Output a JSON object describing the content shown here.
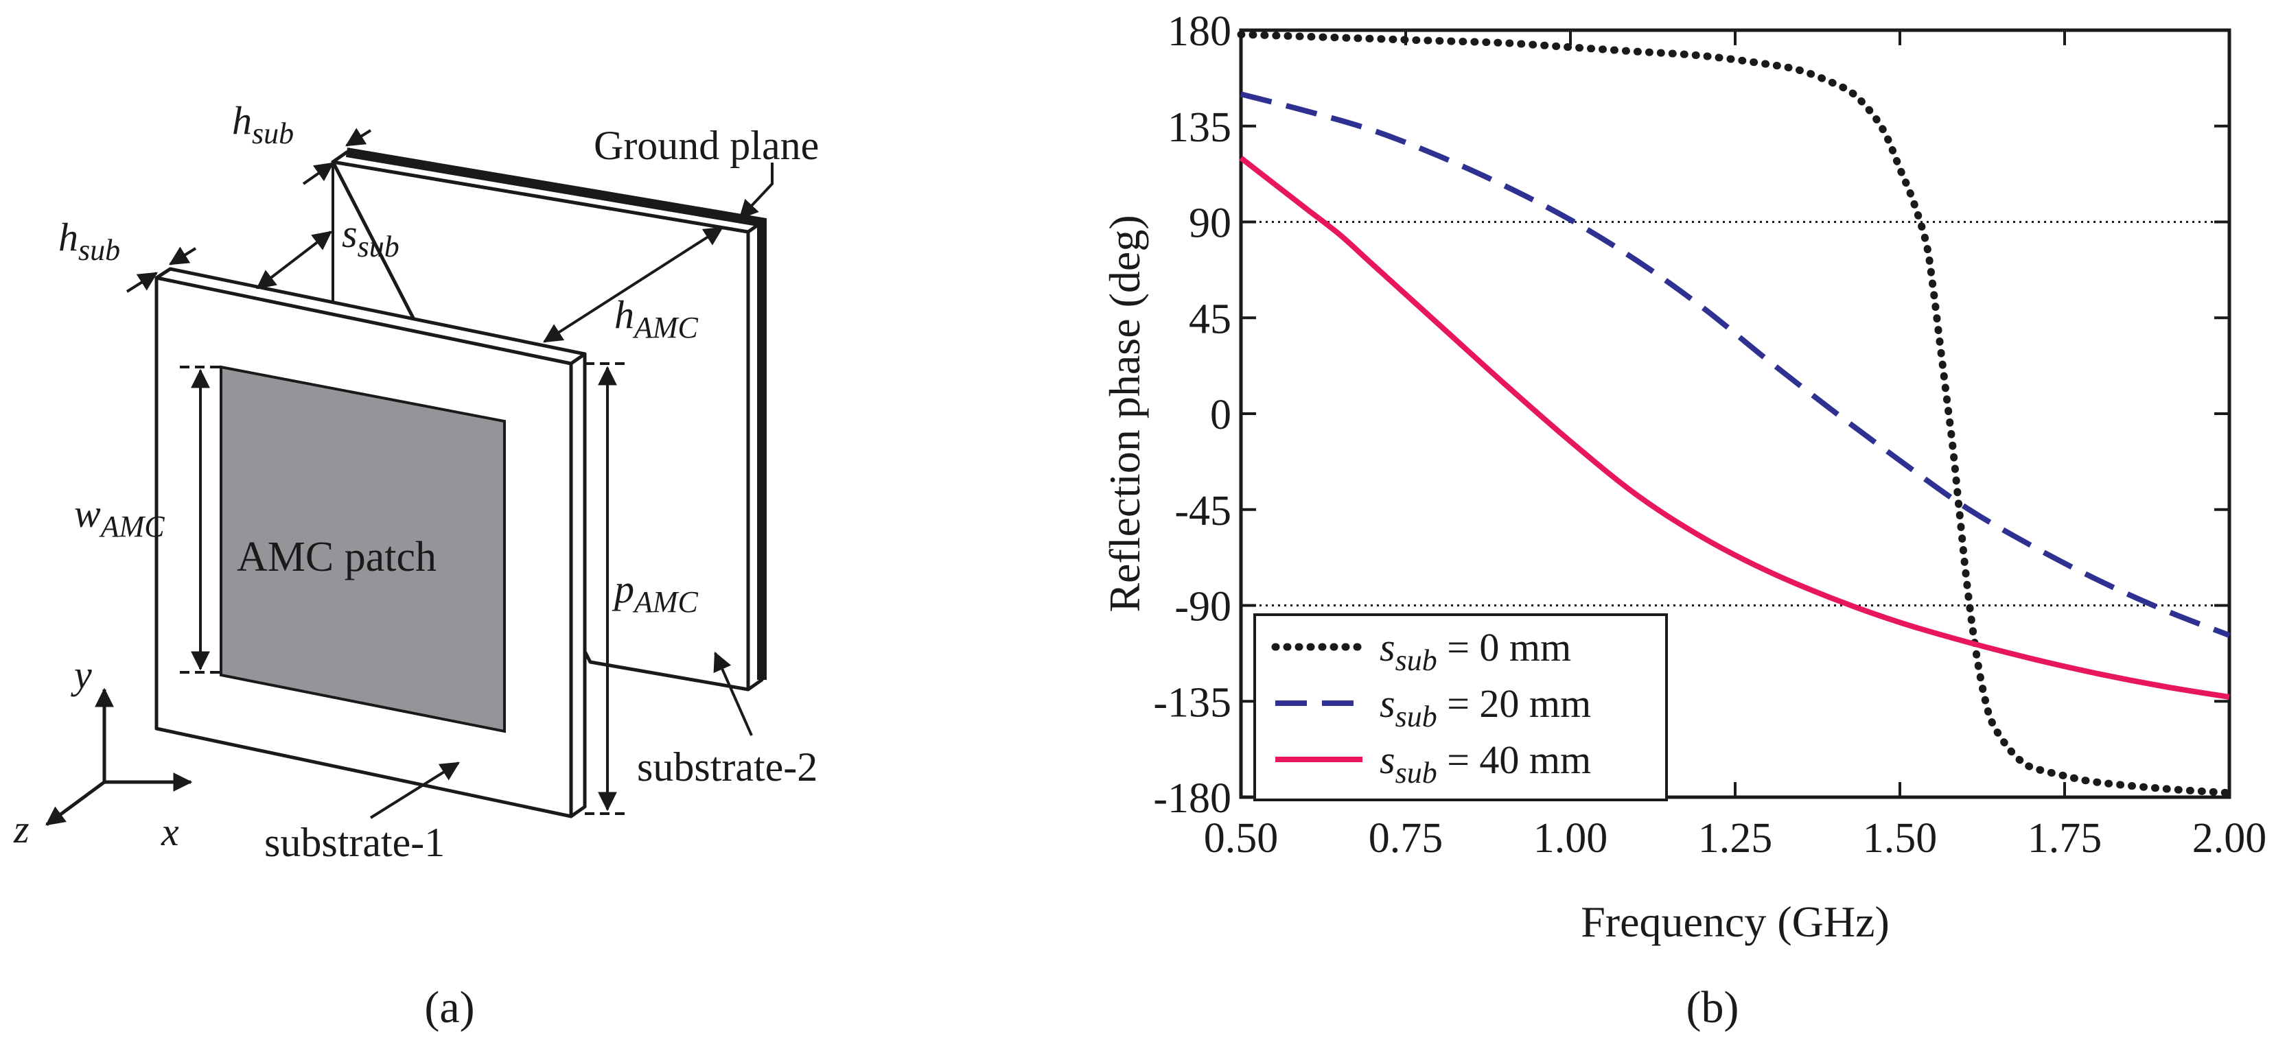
{
  "panel_a": {
    "caption": "(a)",
    "labels": {
      "ground_plane": "Ground plane",
      "amc_patch": "AMC patch",
      "substrate_1": "substrate-1",
      "substrate_2": "substrate-2",
      "h_sub_top": {
        "base": "h",
        "sub": "sub"
      },
      "h_sub_left": {
        "base": "h",
        "sub": "sub"
      },
      "s_sub": {
        "base": "s",
        "sub": "sub"
      },
      "h_amc": {
        "base": "h",
        "sub": "AMC"
      },
      "w_amc": {
        "base": "w",
        "sub": "AMC"
      },
      "p_amc": {
        "base": "p",
        "sub": "AMC"
      },
      "axis_x": "x",
      "axis_y": "y",
      "axis_z": "z"
    },
    "colors": {
      "patch": "#939598",
      "outline": "#1a1a1a"
    }
  },
  "panel_b": {
    "caption": "(b)"
  },
  "chart_data": {
    "type": "line",
    "xlabel": "Frequency (GHz)",
    "ylabel": "Reflection phase (deg)",
    "xlim": [
      0.5,
      2.0
    ],
    "ylim": [
      -180,
      180
    ],
    "xticks": [
      0.5,
      0.75,
      1.0,
      1.25,
      1.5,
      1.75,
      2.0
    ],
    "xtick_labels": [
      "0.50",
      "0.75",
      "1.00",
      "1.25",
      "1.50",
      "1.75",
      "2.00"
    ],
    "yticks": [
      180,
      135,
      90,
      45,
      0,
      -45,
      -90,
      -135,
      -180
    ],
    "ytick_labels": [
      "180",
      "135",
      "90",
      "45",
      "0",
      "-45",
      "-90",
      "-135",
      "-180"
    ],
    "reference_lines": [
      90,
      -90
    ],
    "legend_position": "bottom-left",
    "series": [
      {
        "name": "s_sub = 0 mm",
        "legend": {
          "var": "s",
          "sub": "sub",
          "rest": " = 0 mm"
        },
        "color": "#1a1a1a",
        "style": "dotted",
        "x": [
          0.5,
          0.6,
          0.7,
          0.8,
          0.9,
          1.0,
          1.1,
          1.2,
          1.3,
          1.35,
          1.4,
          1.43,
          1.46,
          1.48,
          1.5,
          1.52,
          1.54,
          1.55,
          1.56,
          1.57,
          1.58,
          1.59,
          1.6,
          1.61,
          1.62,
          1.63,
          1.64,
          1.66,
          1.68,
          1.7,
          1.75,
          1.8,
          1.9,
          2.0
        ],
        "y": [
          178,
          177,
          176,
          175,
          174,
          172,
          170,
          168,
          164,
          161,
          155,
          150,
          140,
          130,
          115,
          100,
          80,
          60,
          35,
          10,
          -15,
          -45,
          -75,
          -100,
          -120,
          -135,
          -145,
          -155,
          -162,
          -166,
          -170,
          -173,
          -176,
          -178
        ]
      },
      {
        "name": "s_sub = 20 mm",
        "legend": {
          "var": "s",
          "sub": "sub",
          "rest": " = 20 mm"
        },
        "color": "#2e3192",
        "style": "dashed",
        "x": [
          0.5,
          0.6,
          0.7,
          0.8,
          0.9,
          1.0,
          1.1,
          1.2,
          1.3,
          1.4,
          1.5,
          1.6,
          1.7,
          1.8,
          1.9,
          2.0
        ],
        "y": [
          150,
          142,
          133,
          121,
          107,
          91,
          72,
          50,
          25,
          1,
          -22,
          -44,
          -62,
          -78,
          -92,
          -104
        ]
      },
      {
        "name": "s_sub = 40 mm",
        "legend": {
          "var": "s",
          "sub": "sub",
          "rest": " = 40 mm"
        },
        "color": "#e8175d",
        "style": "solid",
        "x": [
          0.5,
          0.55,
          0.6,
          0.65,
          0.7,
          0.8,
          0.9,
          1.0,
          1.1,
          1.2,
          1.3,
          1.4,
          1.5,
          1.6,
          1.7,
          1.8,
          1.9,
          2.0
        ],
        "y": [
          120,
          108,
          96,
          84,
          70,
          42,
          14,
          -13,
          -38,
          -58,
          -74,
          -87,
          -98,
          -107,
          -115,
          -122,
          -128,
          -133
        ]
      }
    ]
  }
}
